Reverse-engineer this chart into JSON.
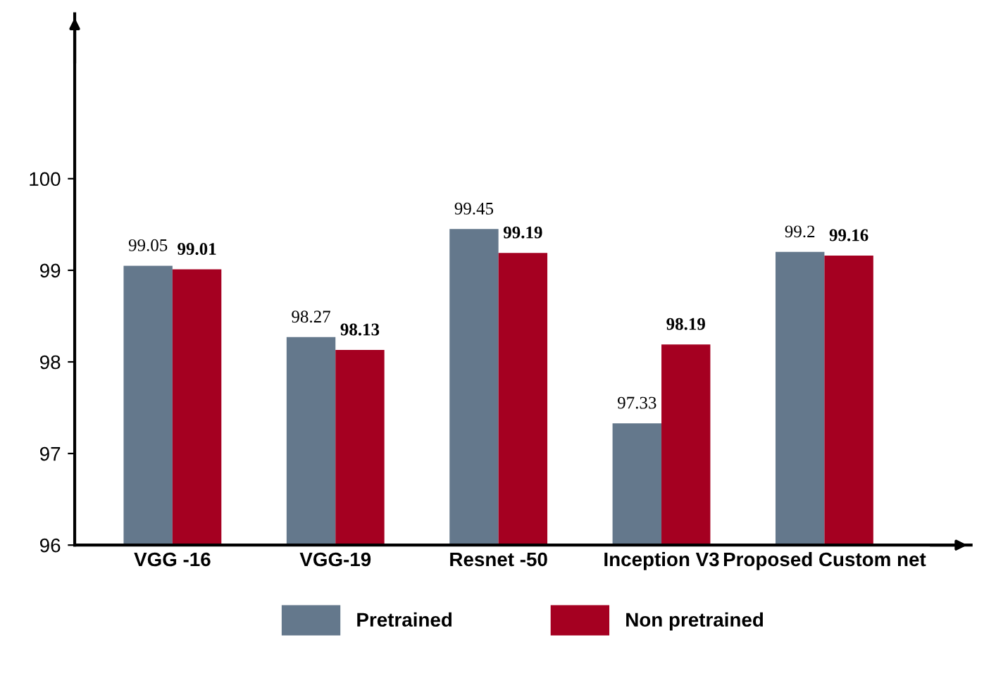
{
  "chart_data": {
    "type": "bar",
    "categories": [
      "VGG -16",
      "VGG-19",
      "Resnet -50",
      "Inception V3",
      "Proposed Custom net"
    ],
    "series": [
      {
        "name": "Pretrained",
        "color": "#64788c",
        "values": [
          99.05,
          98.27,
          99.45,
          97.33,
          99.2
        ]
      },
      {
        "name": "Non pretrained",
        "color": "#a50021",
        "values": [
          99.01,
          98.13,
          99.19,
          98.19,
          99.16
        ]
      }
    ],
    "ylim": [
      96,
      101.8
    ],
    "yticks": [
      96,
      97,
      98,
      99,
      100
    ],
    "grid": false,
    "legend": "bottom",
    "data_labels": true
  }
}
